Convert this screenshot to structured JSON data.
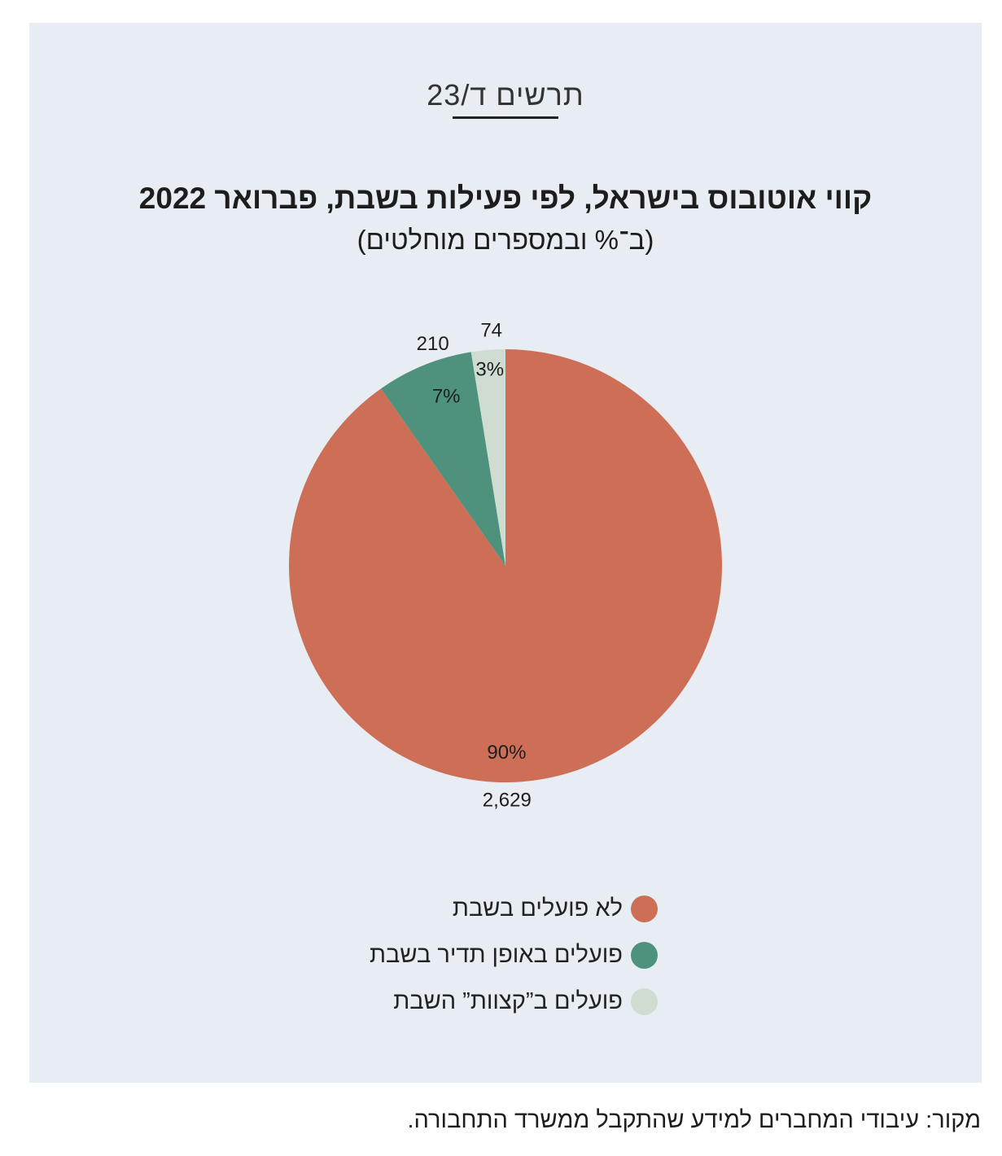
{
  "figure_label": "תרשים ד/23",
  "source_note": "מקור: עיבודי המחברים למידע שהתקבל ממשרד התחבורה.",
  "chart_data": {
    "type": "pie",
    "title": "קווי אוטובוס בישראל, לפי פעילות בשבת, פברואר 2022",
    "subtitle": "(ב־% ובמספרים מוחלטים)",
    "legend_position": "bottom",
    "slices": [
      {
        "label": "לא פועלים בשבת",
        "value": 2629,
        "value_label": "2,629",
        "percent_label": "90%",
        "color": "#cd6f57"
      },
      {
        "label": "פועלים באופן תדיר בשבת",
        "value": 210,
        "value_label": "210",
        "percent_label": "7%",
        "color": "#4e927d"
      },
      {
        "label": "פועלים ב”קצוות” השבת",
        "value": 74,
        "value_label": "74",
        "percent_label": "3%",
        "color": "#cfdcd2"
      }
    ]
  }
}
